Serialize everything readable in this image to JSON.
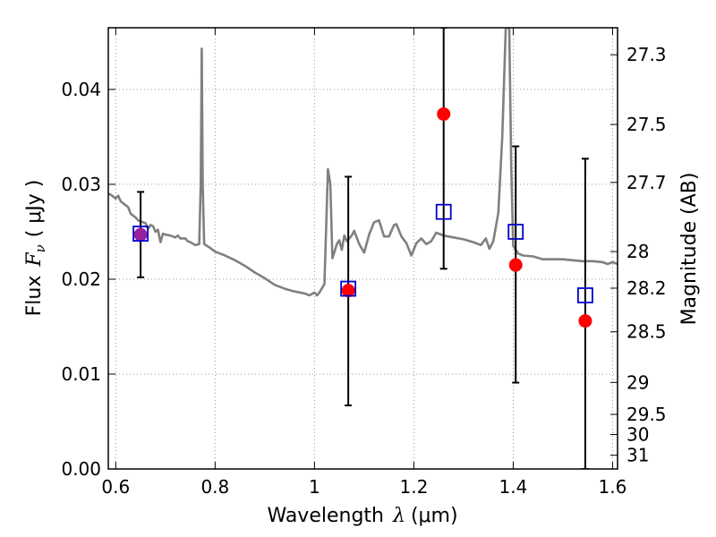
{
  "chart_data": {
    "type": "scatter",
    "xlabel_prefix": "Wavelength",
    "xlabel_symbol": "λ",
    "xlabel_unit": "(μm)",
    "ylabel_prefix": "Flux",
    "ylabel_symbol": "F",
    "ylabel_symbol_sub": "ν",
    "ylabel_unit": "( μJy )",
    "y2label": "Magnitude (AB)",
    "xlim": [
      0.585,
      1.61
    ],
    "ylim": [
      0.0,
      0.0465
    ],
    "xticks": [
      {
        "value": 0.6,
        "label": "0.6"
      },
      {
        "value": 0.8,
        "label": "0.8"
      },
      {
        "value": 1.0,
        "label": "1"
      },
      {
        "value": 1.2,
        "label": "1.2"
      },
      {
        "value": 1.4,
        "label": "1.4"
      },
      {
        "value": 1.6,
        "label": "1.6"
      }
    ],
    "yticks": [
      {
        "value": 0.0,
        "label": "0.00"
      },
      {
        "value": 0.01,
        "label": "0.01"
      },
      {
        "value": 0.02,
        "label": "0.02"
      },
      {
        "value": 0.03,
        "label": "0.03"
      },
      {
        "value": 0.04,
        "label": "0.04"
      }
    ],
    "y2ticks": [
      {
        "value": 27.3,
        "label": "27.3"
      },
      {
        "value": 27.5,
        "label": "27.5"
      },
      {
        "value": 27.7,
        "label": "27.7"
      },
      {
        "value": 28.0,
        "label": "28"
      },
      {
        "value": 28.2,
        "label": "28.2"
      },
      {
        "value": 28.5,
        "label": "28.5"
      },
      {
        "value": 29.0,
        "label": "29"
      },
      {
        "value": 29.5,
        "label": "29.5"
      },
      {
        "value": 30.0,
        "label": "30"
      },
      {
        "value": 31.0,
        "label": "31"
      }
    ],
    "grid": true,
    "colors": {
      "model": "#808080",
      "observed": "#ff0000",
      "model_band": "#0000cc",
      "overlap": "#9b1fa0",
      "errorbar": "#000000",
      "grid": "#999999"
    },
    "series": [
      {
        "name": "model spectrum",
        "kind": "line",
        "points": [
          [
            0.585,
            0.029
          ],
          [
            0.59,
            0.0289
          ],
          [
            0.6,
            0.0285
          ],
          [
            0.605,
            0.0288
          ],
          [
            0.61,
            0.0282
          ],
          [
            0.62,
            0.0278
          ],
          [
            0.625,
            0.0276
          ],
          [
            0.63,
            0.0269
          ],
          [
            0.64,
            0.0265
          ],
          [
            0.645,
            0.0262
          ],
          [
            0.65,
            0.0261
          ],
          [
            0.66,
            0.0259
          ],
          [
            0.665,
            0.0253
          ],
          [
            0.67,
            0.0257
          ],
          [
            0.675,
            0.0256
          ],
          [
            0.68,
            0.025
          ],
          [
            0.685,
            0.0252
          ],
          [
            0.69,
            0.0239
          ],
          [
            0.695,
            0.0248
          ],
          [
            0.7,
            0.0247
          ],
          [
            0.71,
            0.0246
          ],
          [
            0.72,
            0.0244
          ],
          [
            0.725,
            0.0246
          ],
          [
            0.73,
            0.0243
          ],
          [
            0.74,
            0.0243
          ],
          [
            0.745,
            0.024
          ],
          [
            0.75,
            0.0239
          ],
          [
            0.76,
            0.0236
          ],
          [
            0.768,
            0.0237
          ],
          [
            0.771,
            0.03
          ],
          [
            0.773,
            0.0443
          ],
          [
            0.775,
            0.03
          ],
          [
            0.778,
            0.0237
          ],
          [
            0.79,
            0.0233
          ],
          [
            0.8,
            0.0229
          ],
          [
            0.82,
            0.0225
          ],
          [
            0.84,
            0.022
          ],
          [
            0.86,
            0.0214
          ],
          [
            0.88,
            0.0207
          ],
          [
            0.9,
            0.0201
          ],
          [
            0.92,
            0.0194
          ],
          [
            0.94,
            0.019
          ],
          [
            0.96,
            0.0187
          ],
          [
            0.98,
            0.0185
          ],
          [
            0.99,
            0.0183
          ],
          [
            1.0,
            0.0186
          ],
          [
            1.005,
            0.0183
          ],
          [
            1.01,
            0.0186
          ],
          [
            1.02,
            0.0195
          ],
          [
            1.027,
            0.0316
          ],
          [
            1.032,
            0.03
          ],
          [
            1.036,
            0.0222
          ],
          [
            1.045,
            0.0237
          ],
          [
            1.05,
            0.0241
          ],
          [
            1.055,
            0.0231
          ],
          [
            1.06,
            0.0246
          ],
          [
            1.065,
            0.024
          ],
          [
            1.075,
            0.0246
          ],
          [
            1.08,
            0.0251
          ],
          [
            1.09,
            0.0237
          ],
          [
            1.1,
            0.0228
          ],
          [
            1.11,
            0.0247
          ],
          [
            1.12,
            0.026
          ],
          [
            1.13,
            0.0262
          ],
          [
            1.14,
            0.0245
          ],
          [
            1.15,
            0.0245
          ],
          [
            1.16,
            0.0257
          ],
          [
            1.165,
            0.0258
          ],
          [
            1.175,
            0.0245
          ],
          [
            1.185,
            0.0238
          ],
          [
            1.195,
            0.0225
          ],
          [
            1.205,
            0.0238
          ],
          [
            1.215,
            0.0243
          ],
          [
            1.225,
            0.0237
          ],
          [
            1.235,
            0.024
          ],
          [
            1.245,
            0.0249
          ],
          [
            1.26,
            0.0246
          ],
          [
            1.28,
            0.0244
          ],
          [
            1.3,
            0.0242
          ],
          [
            1.32,
            0.0239
          ],
          [
            1.335,
            0.0236
          ],
          [
            1.345,
            0.0243
          ],
          [
            1.352,
            0.0232
          ],
          [
            1.36,
            0.024
          ],
          [
            1.37,
            0.027
          ],
          [
            1.378,
            0.035
          ],
          [
            1.385,
            0.0465
          ],
          [
            1.392,
            0.0465
          ],
          [
            1.396,
            0.032
          ],
          [
            1.4,
            0.0235
          ],
          [
            1.41,
            0.0227
          ],
          [
            1.42,
            0.0225
          ],
          [
            1.44,
            0.0224
          ],
          [
            1.46,
            0.0221
          ],
          [
            1.48,
            0.0221
          ],
          [
            1.5,
            0.0221
          ],
          [
            1.52,
            0.022
          ],
          [
            1.54,
            0.0219
          ],
          [
            1.56,
            0.0219
          ],
          [
            1.58,
            0.0218
          ],
          [
            1.59,
            0.0216
          ],
          [
            1.6,
            0.0218
          ],
          [
            1.61,
            0.0216
          ]
        ]
      },
      {
        "name": "observed flux",
        "kind": "points",
        "marker": "circle",
        "points": [
          {
            "x": 0.65,
            "y": 0.0247,
            "yerr_low": 0.0202,
            "yerr_high": 0.0292
          },
          {
            "x": 1.068,
            "y": 0.0188,
            "yerr_low": 0.0067,
            "yerr_high": 0.0308
          },
          {
            "x": 1.26,
            "y": 0.0374,
            "yerr_low": 0.0211,
            "yerr_high": 0.0465
          },
          {
            "x": 1.405,
            "y": 0.0215,
            "yerr_low": 0.0091,
            "yerr_high": 0.034
          },
          {
            "x": 1.545,
            "y": 0.0156,
            "yerr_low": 0.0,
            "yerr_high": 0.0327
          }
        ]
      },
      {
        "name": "model band flux",
        "kind": "points",
        "marker": "square",
        "points": [
          {
            "x": 0.65,
            "y": 0.0248
          },
          {
            "x": 1.068,
            "y": 0.019
          },
          {
            "x": 1.26,
            "y": 0.0271
          },
          {
            "x": 1.405,
            "y": 0.025
          },
          {
            "x": 1.545,
            "y": 0.0183
          }
        ]
      }
    ]
  }
}
